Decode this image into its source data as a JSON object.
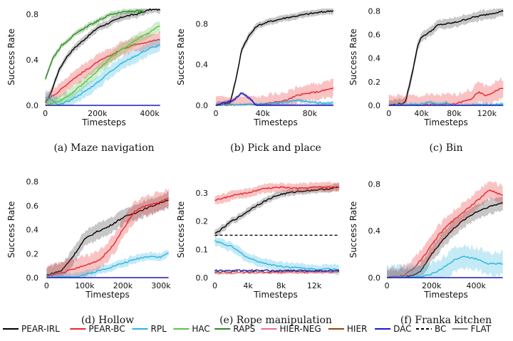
{
  "xlabel": "Timesteps",
  "ylabel": "Success Rate",
  "legend": [
    {
      "name": "PEAR-IRL",
      "color": "#000000",
      "dash": false
    },
    {
      "name": "PEAR-BC",
      "color": "#e8262b",
      "dash": false
    },
    {
      "name": "RPL",
      "color": "#2ab5e0",
      "dash": false
    },
    {
      "name": "HAC",
      "color": "#5ec24a",
      "dash": false
    },
    {
      "name": "RAPS",
      "color": "#2a8a1f",
      "dash": false
    },
    {
      "name": "HIER-NEG",
      "color": "#f06a8a",
      "dash": false
    },
    {
      "name": "HIER",
      "color": "#8b4513",
      "dash": false
    },
    {
      "name": "DAC",
      "color": "#1a1ab8",
      "dash": false
    },
    {
      "name": "BC",
      "color": "#000000",
      "dash": true
    },
    {
      "name": "FLAT",
      "color": "#808080",
      "dash": false
    }
  ],
  "chart_data": [
    {
      "type": "line",
      "caption": "(a) Maze navigation",
      "xlim": [
        -10000,
        460000
      ],
      "ylim": [
        0,
        0.85
      ],
      "xticks": [
        0,
        200000,
        400000
      ],
      "xticklabels": [
        "0",
        "200k",
        "400k"
      ],
      "yticks": [
        0,
        0.4,
        0.8
      ],
      "yticklabels": [
        "0.0",
        "0.4",
        "0.8"
      ],
      "series": [
        {
          "name": "PEAR-IRL",
          "color": "#000000",
          "band": 0.04,
          "x": [
            0,
            20000,
            50000,
            80000,
            110000,
            150000,
            200000,
            250000,
            300000,
            350000,
            400000,
            440000
          ],
          "y": [
            0.02,
            0.1,
            0.3,
            0.42,
            0.5,
            0.58,
            0.68,
            0.73,
            0.78,
            0.8,
            0.84,
            0.84
          ]
        },
        {
          "name": "PEAR-BC",
          "color": "#e8262b",
          "band": 0.08,
          "x": [
            0,
            50000,
            100000,
            150000,
            200000,
            250000,
            300000,
            350000,
            400000,
            440000
          ],
          "y": [
            0.04,
            0.12,
            0.22,
            0.3,
            0.38,
            0.44,
            0.5,
            0.54,
            0.56,
            0.58
          ]
        },
        {
          "name": "RPL",
          "color": "#2ab5e0",
          "band": 0.07,
          "x": [
            0,
            20000,
            50000,
            100000,
            150000,
            200000,
            250000,
            300000,
            350000,
            400000,
            440000
          ],
          "y": [
            0.07,
            0.05,
            0.0,
            0.05,
            0.12,
            0.2,
            0.3,
            0.38,
            0.44,
            0.5,
            0.53
          ]
        },
        {
          "name": "HAC",
          "color": "#5ec24a",
          "band": 0.06,
          "x": [
            0,
            50000,
            100000,
            150000,
            200000,
            250000,
            300000,
            350000,
            400000,
            440000
          ],
          "y": [
            0.0,
            0.03,
            0.1,
            0.2,
            0.3,
            0.42,
            0.5,
            0.58,
            0.64,
            0.7
          ]
        },
        {
          "name": "RAPS",
          "color": "#2a8a1f",
          "band": 0.03,
          "x": [
            0,
            10000,
            30000,
            60000,
            100000,
            150000,
            200000,
            250000,
            300000,
            350000,
            380000
          ],
          "y": [
            0.23,
            0.3,
            0.42,
            0.52,
            0.6,
            0.68,
            0.74,
            0.8,
            0.82,
            0.83,
            0.82
          ]
        },
        {
          "name": "DAC",
          "color": "#1a1ab8",
          "band": 0,
          "x": [
            0,
            440000
          ],
          "y": [
            0,
            0
          ]
        }
      ]
    },
    {
      "type": "line",
      "caption": "(b) Pick and place",
      "xlim": [
        -3000,
        105000
      ],
      "ylim": [
        0,
        0.95
      ],
      "xticks": [
        0,
        40000,
        80000
      ],
      "xticklabels": [
        "0",
        "40k",
        "80k"
      ],
      "yticks": [
        0,
        0.4,
        0.8
      ],
      "yticklabels": [
        "0.0",
        "0.4",
        "0.8"
      ],
      "series": [
        {
          "name": "PEAR-IRL",
          "color": "#000000",
          "band": 0.04,
          "x": [
            0,
            12000,
            18000,
            22000,
            28000,
            35000,
            45000,
            60000,
            80000,
            100000
          ],
          "y": [
            0.0,
            0.02,
            0.3,
            0.55,
            0.68,
            0.78,
            0.82,
            0.86,
            0.9,
            0.93
          ]
        },
        {
          "name": "PEAR-BC",
          "color": "#e8262b",
          "band": 0.1,
          "x": [
            0,
            40000,
            60000,
            70000,
            80000,
            90000,
            100000
          ],
          "y": [
            0.0,
            0.01,
            0.05,
            0.1,
            0.12,
            0.14,
            0.17
          ]
        },
        {
          "name": "RPL",
          "color": "#2ab5e0",
          "band": 0.02,
          "x": [
            0,
            30000,
            50000,
            70000,
            80000,
            100000
          ],
          "y": [
            0.0,
            0.01,
            0.02,
            0.05,
            0.03,
            0.02
          ]
        },
        {
          "name": "DAC",
          "color": "#1a1ab8",
          "band": 0.02,
          "x": [
            0,
            15000,
            22000,
            28000,
            34000,
            100000
          ],
          "y": [
            0.0,
            0.05,
            0.12,
            0.08,
            0.0,
            0.0
          ]
        }
      ]
    },
    {
      "type": "line",
      "caption": "(c) Bin",
      "xlim": [
        -5000,
        145000
      ],
      "ylim": [
        0,
        0.82
      ],
      "xticks": [
        0,
        40000,
        80000,
        120000
      ],
      "xticklabels": [
        "0",
        "40k",
        "80k",
        "120k"
      ],
      "yticks": [
        0,
        0.2,
        0.4,
        0.6,
        0.8
      ],
      "yticklabels": [
        "0.0",
        "0.2",
        "0.4",
        "0.6",
        "0.8"
      ],
      "series": [
        {
          "name": "PEAR-IRL",
          "color": "#000000",
          "band": 0.05,
          "x": [
            0,
            20000,
            28000,
            35000,
            40000,
            50000,
            60000,
            80000,
            100000,
            120000,
            140000
          ],
          "y": [
            0.0,
            0.02,
            0.25,
            0.5,
            0.58,
            0.62,
            0.68,
            0.7,
            0.74,
            0.77,
            0.8
          ]
        },
        {
          "name": "PEAR-BC",
          "color": "#e8262b",
          "band": 0.1,
          "x": [
            0,
            80000,
            100000,
            110000,
            120000,
            130000,
            140000
          ],
          "y": [
            0.0,
            0.01,
            0.05,
            0.11,
            0.08,
            0.12,
            0.15
          ]
        },
        {
          "name": "RPL",
          "color": "#2ab5e0",
          "band": 0.02,
          "x": [
            0,
            40000,
            50000,
            60000,
            70000,
            80000,
            140000
          ],
          "y": [
            0.0,
            0.01,
            0.03,
            0.01,
            0.02,
            0.0,
            0.01
          ]
        },
        {
          "name": "DAC",
          "color": "#1a1ab8",
          "band": 0,
          "x": [
            0,
            140000
          ],
          "y": [
            0,
            0
          ]
        }
      ]
    },
    {
      "type": "line",
      "caption": "(d) Hollow",
      "xlim": [
        -10000,
        330000
      ],
      "ylim": [
        0,
        0.8
      ],
      "xticks": [
        0,
        100000,
        200000,
        300000
      ],
      "xticklabels": [
        "0",
        "100k",
        "200k",
        "300k"
      ],
      "yticks": [
        0,
        0.2,
        0.4,
        0.6,
        0.8
      ],
      "yticklabels": [
        "0.0",
        "0.2",
        "0.4",
        "0.6",
        "0.8"
      ],
      "series": [
        {
          "name": "PEAR-IRL",
          "color": "#000000",
          "band": 0.08,
          "x": [
            0,
            40000,
            70000,
            100000,
            130000,
            160000,
            200000,
            240000,
            280000,
            320000
          ],
          "y": [
            0.02,
            0.06,
            0.18,
            0.32,
            0.38,
            0.42,
            0.5,
            0.55,
            0.6,
            0.65
          ]
        },
        {
          "name": "PEAR-BC",
          "color": "#e8262b",
          "band": 0.1,
          "x": [
            0,
            50000,
            100000,
            140000,
            170000,
            200000,
            230000,
            260000,
            290000,
            320000
          ],
          "y": [
            0.01,
            0.05,
            0.1,
            0.15,
            0.25,
            0.4,
            0.55,
            0.6,
            0.62,
            0.66
          ]
        },
        {
          "name": "RPL",
          "color": "#2ab5e0",
          "band": 0.04,
          "x": [
            0,
            80000,
            120000,
            160000,
            200000,
            240000,
            270000,
            300000,
            320000
          ],
          "y": [
            0.0,
            0.01,
            0.04,
            0.08,
            0.12,
            0.16,
            0.18,
            0.17,
            0.21
          ]
        },
        {
          "name": "DAC",
          "color": "#1a1ab8",
          "band": 0,
          "x": [
            0,
            320000
          ],
          "y": [
            0,
            0
          ]
        }
      ]
    },
    {
      "type": "line",
      "caption": "(e) Rope manipulation",
      "xlim": [
        -300,
        15000
      ],
      "ylim": [
        0,
        0.34
      ],
      "xticks": [
        0,
        4000,
        8000,
        12000
      ],
      "xticklabels": [
        "0",
        "4k",
        "8k",
        "12k"
      ],
      "yticks": [
        0,
        0.1,
        0.2,
        0.3
      ],
      "yticklabels": [
        "0.0",
        "0.1",
        "0.2",
        "0.3"
      ],
      "series": [
        {
          "name": "PEAR-IRL",
          "color": "#000000",
          "band": 0.015,
          "x": [
            0,
            1000,
            2000,
            3000,
            4000,
            5000,
            6000,
            7000,
            8000,
            10000,
            12000,
            14000,
            15000
          ],
          "y": [
            0.155,
            0.175,
            0.2,
            0.215,
            0.235,
            0.255,
            0.27,
            0.285,
            0.295,
            0.305,
            0.31,
            0.315,
            0.32
          ]
        },
        {
          "name": "PEAR-BC",
          "color": "#e8262b",
          "band": 0.02,
          "x": [
            0,
            1000,
            2000,
            4000,
            6000,
            8000,
            10000,
            12000,
            15000
          ],
          "y": [
            0.275,
            0.28,
            0.29,
            0.3,
            0.315,
            0.32,
            0.315,
            0.32,
            0.32
          ]
        },
        {
          "name": "RPL",
          "color": "#2ab5e0",
          "band": 0.02,
          "x": [
            0,
            1000,
            2000,
            3000,
            4000,
            6000,
            8000,
            10000,
            12000,
            15000
          ],
          "y": [
            0.13,
            0.12,
            0.11,
            0.09,
            0.07,
            0.05,
            0.04,
            0.035,
            0.03,
            0.03
          ]
        },
        {
          "name": "HIER",
          "color": "#8b4513",
          "band": 0,
          "x": [
            0,
            15000
          ],
          "y": [
            0.02,
            0.022
          ]
        },
        {
          "name": "DAC",
          "color": "#1a1ab8",
          "band": 0,
          "x": [
            0,
            15000
          ],
          "y": [
            0.025,
            0.025
          ]
        },
        {
          "name": "HIER-NEG",
          "color": "#f06a8a",
          "band": 0,
          "x": [
            0,
            15000
          ],
          "y": [
            0.015,
            0.018
          ]
        },
        {
          "name": "BC",
          "color": "#000000",
          "dash": true,
          "band": 0,
          "x": [
            0,
            15000
          ],
          "y": [
            0.15,
            0.15
          ]
        }
      ]
    },
    {
      "type": "line",
      "caption": "(f) Franka kitchen",
      "xlim": [
        -10000,
        540000
      ],
      "ylim": [
        0,
        0.82
      ],
      "xticks": [
        0,
        200000,
        400000
      ],
      "xticklabels": [
        "0",
        "200k",
        "400k"
      ],
      "yticks": [
        0,
        0.4,
        0.8
      ],
      "yticklabels": [
        "0.0",
        "0.4",
        "0.8"
      ],
      "series": [
        {
          "name": "PEAR-IRL",
          "color": "#000000",
          "band": 0.08,
          "x": [
            0,
            100000,
            150000,
            200000,
            250000,
            300000,
            350000,
            400000,
            450000,
            520000
          ],
          "y": [
            0.0,
            0.01,
            0.05,
            0.2,
            0.32,
            0.42,
            0.5,
            0.56,
            0.6,
            0.64
          ]
        },
        {
          "name": "PEAR-BC",
          "color": "#e8262b",
          "band": 0.1,
          "x": [
            0,
            80000,
            130000,
            180000,
            230000,
            280000,
            330000,
            380000,
            420000,
            460000,
            520000
          ],
          "y": [
            0.0,
            0.02,
            0.1,
            0.22,
            0.36,
            0.46,
            0.54,
            0.62,
            0.68,
            0.75,
            0.7
          ]
        },
        {
          "name": "RPL",
          "color": "#2ab5e0",
          "band": 0.12,
          "x": [
            0,
            150000,
            200000,
            250000,
            300000,
            350000,
            400000,
            450000,
            520000
          ],
          "y": [
            0.0,
            0.01,
            0.03,
            0.08,
            0.15,
            0.18,
            0.16,
            0.12,
            0.12
          ]
        },
        {
          "name": "DAC",
          "color": "#1a1ab8",
          "band": 0,
          "x": [
            0,
            520000
          ],
          "y": [
            0,
            0
          ]
        }
      ]
    }
  ]
}
